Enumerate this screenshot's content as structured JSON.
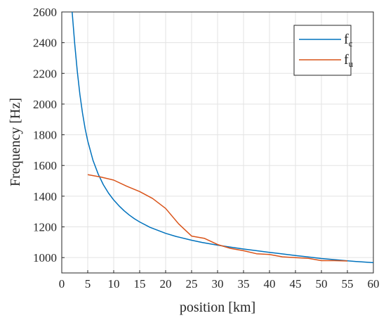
{
  "chart_data": {
    "type": "line",
    "title": "",
    "xlabel": "position [km]",
    "ylabel": "Frequency [Hz]",
    "xlim": [
      0,
      60
    ],
    "ylim": [
      900,
      2600
    ],
    "xticks": [
      0,
      5,
      10,
      15,
      20,
      25,
      30,
      35,
      40,
      45,
      50,
      55,
      60
    ],
    "yticks": [
      1000,
      1200,
      1400,
      1600,
      1800,
      2000,
      2200,
      2400,
      2600
    ],
    "grid": true,
    "legend_position": "top-right",
    "series": [
      {
        "name": "fc",
        "label_main": "f",
        "label_sub": "c",
        "color": "#0072BD",
        "x": [
          2,
          2.5,
          3,
          3.5,
          4,
          4.5,
          5,
          6,
          7,
          8,
          9,
          10,
          11,
          12,
          13,
          14,
          15,
          17,
          20,
          22,
          25,
          27,
          30,
          32,
          35,
          37,
          40,
          42,
          45,
          47,
          50,
          52,
          55,
          57,
          60
        ],
        "y": [
          2600,
          2390,
          2210,
          2060,
          1940,
          1840,
          1760,
          1635,
          1545,
          1475,
          1420,
          1375,
          1338,
          1305,
          1277,
          1253,
          1232,
          1197,
          1158,
          1138,
          1113,
          1099,
          1081,
          1071,
          1056,
          1047,
          1034,
          1026,
          1013,
          1006,
          994,
          988,
          979,
          974,
          967
        ]
      },
      {
        "name": "fu",
        "label_main": "f",
        "label_sub": "u",
        "color": "#D95319",
        "x": [
          5,
          7.5,
          10,
          12.5,
          15,
          17.5,
          20,
          22.5,
          25,
          27.5,
          30,
          32.5,
          35,
          37.5,
          40,
          42.5,
          45,
          47.5,
          50,
          52.5,
          55
        ],
        "y": [
          1540,
          1525,
          1505,
          1465,
          1430,
          1385,
          1320,
          1220,
          1140,
          1125,
          1085,
          1060,
          1045,
          1025,
          1020,
          1005,
          1000,
          995,
          980,
          980,
          978
        ]
      }
    ]
  }
}
